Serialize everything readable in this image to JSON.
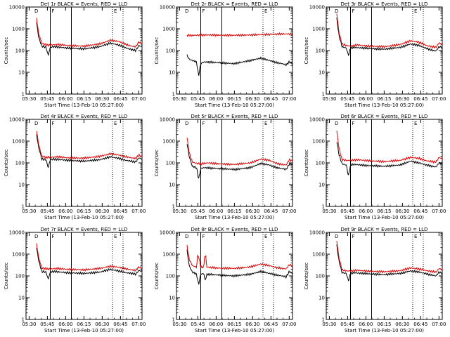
{
  "page": {
    "background": "#ffffff"
  },
  "colors": {
    "events": "#000000",
    "lld": "#e00000",
    "axes": "#000000"
  },
  "chart_data": [
    {
      "type": "line",
      "title": "Det 1r BLACK = Events, RED = LLD",
      "xlabel": "Start Time (13-Feb-10 05:27:00)",
      "ylabel": "Counts/sec",
      "yscale": "log",
      "ylim": [
        1,
        10000
      ],
      "ytick_labels": [
        "1",
        "10",
        "100",
        "1000",
        "10000"
      ],
      "xlim": [
        -0.1,
        1.0
      ],
      "xtick_labels": [
        "05:30",
        "05:45",
        "06:00",
        "06:15",
        "06:30",
        "06:45",
        "07:00"
      ],
      "markers": [
        "D",
        "F",
        "E"
      ],
      "solid_lines_x": [
        0.13,
        0.33
      ],
      "dotted_lines_x": [
        0.72,
        0.82
      ],
      "series": [
        {
          "name": "Events",
          "color": "black",
          "x": [
            0.0,
            0.02,
            0.05,
            0.09,
            0.11,
            0.13,
            0.16,
            0.3,
            0.45,
            0.6,
            0.7,
            0.78,
            0.85,
            0.9,
            0.94,
            0.97,
            1.0
          ],
          "y": [
            2000,
            400,
            160,
            140,
            60,
            140,
            150,
            130,
            120,
            150,
            220,
            180,
            130,
            110,
            100,
            170,
            150
          ]
        },
        {
          "name": "LLD",
          "color": "red",
          "x": [
            0.0,
            0.02,
            0.05,
            0.09,
            0.13,
            0.2,
            0.3,
            0.45,
            0.6,
            0.7,
            0.78,
            0.85,
            0.9,
            0.94,
            0.97,
            1.0
          ],
          "y": [
            3000,
            600,
            220,
            180,
            180,
            190,
            170,
            160,
            200,
            300,
            260,
            190,
            160,
            150,
            250,
            200
          ]
        }
      ]
    },
    {
      "type": "line",
      "title": "Det 2r BLACK = Events, RED = LLD",
      "xlabel": "Start Time (13-Feb-10 05:27:00)",
      "ylabel": "Counts/sec",
      "yscale": "log",
      "ylim": [
        1,
        10000
      ],
      "ytick_labels": [
        "1",
        "10",
        "100",
        "1000",
        "10000"
      ],
      "xlim": [
        -0.1,
        1.0
      ],
      "xtick_labels": [
        "05:30",
        "05:45",
        "06:00",
        "06:15",
        "06:30",
        "06:45",
        "07:00"
      ],
      "markers": [
        "D",
        "F",
        "E"
      ],
      "solid_lines_x": [
        0.13,
        0.33
      ],
      "dotted_lines_x": [
        0.72,
        0.82
      ],
      "series": [
        {
          "name": "Events",
          "color": "black",
          "x": [
            0.0,
            0.02,
            0.05,
            0.09,
            0.11,
            0.13,
            0.16,
            0.3,
            0.45,
            0.6,
            0.7,
            0.78,
            0.85,
            0.9,
            0.94,
            0.97,
            1.0
          ],
          "y": [
            60,
            40,
            35,
            30,
            7,
            25,
            30,
            28,
            25,
            35,
            45,
            35,
            28,
            25,
            22,
            30,
            25
          ]
        },
        {
          "name": "LLD",
          "color": "red",
          "x": [
            0.0,
            0.05,
            0.2,
            0.4,
            0.6,
            0.8,
            0.95,
            1.0
          ],
          "y": [
            500,
            500,
            520,
            500,
            520,
            560,
            580,
            560
          ]
        }
      ]
    },
    {
      "type": "line",
      "title": "Det 3r BLACK = Events, RED = LLD",
      "xlabel": "Start Time (13-Feb-10 05:27:00)",
      "ylabel": "Counts/sec",
      "yscale": "log",
      "ylim": [
        1,
        10000
      ],
      "ytick_labels": [
        "1",
        "10",
        "100",
        "1000",
        "10000"
      ],
      "xlim": [
        -0.1,
        1.0
      ],
      "xtick_labels": [
        "05:30",
        "05:45",
        "06:00",
        "06:15",
        "06:30",
        "06:45",
        "07:00"
      ],
      "markers": [
        "D",
        "F",
        "E"
      ],
      "solid_lines_x": [
        0.13,
        0.33
      ],
      "dotted_lines_x": [
        0.72,
        0.82
      ],
      "series": [
        {
          "name": "Events",
          "color": "black",
          "x": [
            0.0,
            0.02,
            0.05,
            0.09,
            0.11,
            0.13,
            0.16,
            0.3,
            0.45,
            0.6,
            0.7,
            0.78,
            0.85,
            0.9,
            0.94,
            0.97,
            1.0
          ],
          "y": [
            3000,
            500,
            150,
            130,
            60,
            130,
            140,
            125,
            115,
            140,
            200,
            170,
            125,
            105,
            95,
            150,
            140
          ]
        },
        {
          "name": "LLD",
          "color": "red",
          "x": [
            0.0,
            0.02,
            0.05,
            0.09,
            0.13,
            0.2,
            0.3,
            0.45,
            0.6,
            0.7,
            0.78,
            0.85,
            0.9,
            0.94,
            0.97,
            1.0
          ],
          "y": [
            5000,
            700,
            200,
            170,
            160,
            180,
            160,
            150,
            190,
            280,
            240,
            170,
            150,
            140,
            230,
            180
          ]
        }
      ]
    },
    {
      "type": "line",
      "title": "Det 4r BLACK = Events, RED = LLD",
      "xlabel": "Start Time (13-Feb-10 05:27:00)",
      "ylabel": "Counts/sec",
      "yscale": "log",
      "ylim": [
        1,
        10000
      ],
      "ytick_labels": [
        "1",
        "10",
        "100",
        "1000",
        "10000"
      ],
      "xlim": [
        -0.1,
        1.0
      ],
      "xtick_labels": [
        "05:30",
        "05:45",
        "06:00",
        "06:15",
        "06:30",
        "06:45",
        "07:00"
      ],
      "markers": [
        "D",
        "F",
        "E"
      ],
      "solid_lines_x": [
        0.13,
        0.33
      ],
      "dotted_lines_x": [
        0.72,
        0.82
      ],
      "series": [
        {
          "name": "Events",
          "color": "black",
          "x": [
            0.0,
            0.02,
            0.05,
            0.09,
            0.11,
            0.13,
            0.16,
            0.3,
            0.45,
            0.6,
            0.7,
            0.78,
            0.85,
            0.9,
            0.94,
            0.97,
            1.0
          ],
          "y": [
            2000,
            500,
            150,
            140,
            60,
            140,
            150,
            130,
            120,
            140,
            190,
            160,
            130,
            120,
            110,
            170,
            150
          ]
        },
        {
          "name": "LLD",
          "color": "red",
          "x": [
            0.0,
            0.02,
            0.05,
            0.09,
            0.13,
            0.2,
            0.3,
            0.45,
            0.6,
            0.7,
            0.78,
            0.85,
            0.9,
            0.94,
            0.97,
            1.0
          ],
          "y": [
            3000,
            700,
            200,
            180,
            180,
            190,
            170,
            165,
            200,
            260,
            230,
            190,
            170,
            160,
            230,
            190
          ]
        }
      ]
    },
    {
      "type": "line",
      "title": "Det 5r BLACK = Events, RED = LLD",
      "xlabel": "Start Time (13-Feb-10 05:27:00)",
      "ylabel": "Counts/sec",
      "yscale": "log",
      "ylim": [
        1,
        10000
      ],
      "ytick_labels": [
        "1",
        "10",
        "100",
        "1000",
        "10000"
      ],
      "xlim": [
        -0.1,
        1.0
      ],
      "xtick_labels": [
        "05:30",
        "05:45",
        "06:00",
        "06:15",
        "06:30",
        "06:45",
        "07:00"
      ],
      "markers": [
        "D",
        "F",
        "E"
      ],
      "solid_lines_x": [
        0.13,
        0.33
      ],
      "dotted_lines_x": [
        0.72,
        0.82
      ],
      "series": [
        {
          "name": "Events",
          "color": "black",
          "x": [
            0.0,
            0.02,
            0.05,
            0.09,
            0.11,
            0.13,
            0.16,
            0.3,
            0.45,
            0.6,
            0.7,
            0.78,
            0.85,
            0.9,
            0.94,
            0.97,
            1.0
          ],
          "y": [
            800,
            200,
            70,
            60,
            18,
            55,
            60,
            55,
            50,
            60,
            95,
            80,
            60,
            55,
            50,
            90,
            80
          ]
        },
        {
          "name": "LLD",
          "color": "red",
          "x": [
            0.0,
            0.02,
            0.05,
            0.09,
            0.13,
            0.2,
            0.3,
            0.45,
            0.6,
            0.7,
            0.78,
            0.85,
            0.9,
            0.94,
            0.97,
            1.0
          ],
          "y": [
            1500,
            300,
            110,
            95,
            90,
            100,
            90,
            85,
            100,
            150,
            130,
            95,
            85,
            80,
            140,
            120
          ]
        }
      ]
    },
    {
      "type": "line",
      "title": "Det 6r BLACK = Events, RED = LLD",
      "xlabel": "Start Time (13-Feb-10 05:27:00)",
      "ylabel": "Counts/sec",
      "yscale": "log",
      "ylim": [
        1,
        10000
      ],
      "ytick_labels": [
        "1",
        "10",
        "100",
        "1000",
        "10000"
      ],
      "xlim": [
        -0.1,
        1.0
      ],
      "xtick_labels": [
        "05:30",
        "05:45",
        "06:00",
        "06:15",
        "06:30",
        "06:45",
        "07:00"
      ],
      "markers": [
        "D",
        "F",
        "E"
      ],
      "solid_lines_x": [
        0.13,
        0.33
      ],
      "dotted_lines_x": [
        0.72,
        0.82
      ],
      "series": [
        {
          "name": "Events",
          "color": "black",
          "x": [
            0.0,
            0.02,
            0.05,
            0.09,
            0.11,
            0.13,
            0.16,
            0.3,
            0.45,
            0.6,
            0.7,
            0.78,
            0.85,
            0.9,
            0.94,
            0.97,
            1.0
          ],
          "y": [
            1000,
            250,
            90,
            80,
            25,
            80,
            85,
            75,
            70,
            80,
            120,
            100,
            80,
            70,
            65,
            100,
            90
          ]
        },
        {
          "name": "LLD",
          "color": "red",
          "x": [
            0.0,
            0.02,
            0.05,
            0.09,
            0.13,
            0.2,
            0.3,
            0.45,
            0.6,
            0.7,
            0.78,
            0.85,
            0.9,
            0.94,
            0.97,
            1.0
          ],
          "y": [
            3000,
            500,
            140,
            130,
            130,
            140,
            125,
            115,
            130,
            180,
            160,
            125,
            115,
            110,
            180,
            150
          ]
        }
      ]
    },
    {
      "type": "line",
      "title": "Det 7r BLACK = Events, RED = LLD",
      "xlabel": "Start Time (13-Feb-10 05:27:00)",
      "ylabel": "Counts/sec",
      "yscale": "log",
      "ylim": [
        1,
        10000
      ],
      "ytick_labels": [
        "1",
        "10",
        "100",
        "1000",
        "10000"
      ],
      "xlim": [
        -0.1,
        1.0
      ],
      "xtick_labels": [
        "05:30",
        "05:45",
        "06:00",
        "06:15",
        "06:30",
        "06:45",
        "07:00"
      ],
      "markers": [
        "D",
        "F",
        "E"
      ],
      "solid_lines_x": [
        0.13,
        0.33
      ],
      "dotted_lines_x": [
        0.72,
        0.82
      ],
      "series": [
        {
          "name": "Events",
          "color": "black",
          "x": [
            0.0,
            0.02,
            0.05,
            0.09,
            0.11,
            0.13,
            0.16,
            0.3,
            0.45,
            0.6,
            0.7,
            0.78,
            0.85,
            0.9,
            0.94,
            0.97,
            1.0
          ],
          "y": [
            2000,
            500,
            160,
            150,
            70,
            150,
            160,
            140,
            130,
            150,
            200,
            170,
            140,
            130,
            120,
            180,
            160
          ]
        },
        {
          "name": "LLD",
          "color": "red",
          "x": [
            0.0,
            0.02,
            0.05,
            0.09,
            0.13,
            0.2,
            0.3,
            0.45,
            0.6,
            0.7,
            0.78,
            0.85,
            0.9,
            0.94,
            0.97,
            1.0
          ],
          "y": [
            3000,
            700,
            230,
            210,
            210,
            220,
            200,
            190,
            220,
            280,
            250,
            210,
            190,
            180,
            260,
            220
          ]
        }
      ]
    },
    {
      "type": "line",
      "title": "Det 8r BLACK = Events, RED = LLD",
      "xlabel": "Start Time (13-Feb-10 05:27:00)",
      "ylabel": "Counts/sec",
      "yscale": "log",
      "ylim": [
        1,
        10000
      ],
      "ytick_labels": [
        "1",
        "10",
        "100",
        "1000",
        "10000"
      ],
      "xlim": [
        -0.1,
        1.0
      ],
      "xtick_labels": [
        "05:30",
        "05:45",
        "06:00",
        "06:15",
        "06:30",
        "06:45",
        "07:00"
      ],
      "markers": [
        "D",
        "F",
        "E"
      ],
      "solid_lines_x": [
        0.13,
        0.33
      ],
      "dotted_lines_x": [
        0.72,
        0.82
      ],
      "series": [
        {
          "name": "Events",
          "color": "black",
          "x": [
            0.0,
            0.02,
            0.05,
            0.09,
            0.11,
            0.13,
            0.16,
            0.17,
            0.19,
            0.3,
            0.45,
            0.6,
            0.7,
            0.78,
            0.85,
            0.9,
            0.94,
            0.97,
            1.0
          ],
          "y": [
            1500,
            300,
            150,
            120,
            40,
            120,
            130,
            60,
            120,
            110,
            100,
            120,
            160,
            130,
            110,
            100,
            90,
            160,
            130
          ]
        },
        {
          "name": "LLD",
          "color": "red",
          "x": [
            0.0,
            0.02,
            0.05,
            0.09,
            0.1,
            0.11,
            0.13,
            0.16,
            0.165,
            0.18,
            0.185,
            0.2,
            0.3,
            0.45,
            0.6,
            0.7,
            0.78,
            0.85,
            0.9,
            0.94,
            0.97,
            1.0
          ],
          "y": [
            2500,
            600,
            300,
            250,
            800,
            800,
            250,
            260,
            800,
            800,
            260,
            250,
            230,
            220,
            260,
            350,
            300,
            240,
            220,
            210,
            330,
            280
          ]
        }
      ]
    },
    {
      "type": "line",
      "title": "Det 9r BLACK = Events, RED = LLD",
      "xlabel": "Start Time (13-Feb-10 05:27:00)",
      "ylabel": "Counts/sec",
      "yscale": "log",
      "ylim": [
        1,
        10000
      ],
      "ytick_labels": [
        "1",
        "10",
        "100",
        "1000",
        "10000"
      ],
      "xlim": [
        -0.1,
        1.0
      ],
      "xtick_labels": [
        "05:30",
        "05:45",
        "06:00",
        "06:15",
        "06:30",
        "06:45",
        "07:00"
      ],
      "markers": [
        "D",
        "F",
        "E"
      ],
      "solid_lines_x": [
        0.13,
        0.33
      ],
      "dotted_lines_x": [
        0.72,
        0.82
      ],
      "series": [
        {
          "name": "Events",
          "color": "black",
          "x": [
            0.0,
            0.02,
            0.05,
            0.09,
            0.11,
            0.13,
            0.16,
            0.3,
            0.45,
            0.6,
            0.7,
            0.78,
            0.85,
            0.9,
            0.94,
            0.97,
            1.0
          ],
          "y": [
            2500,
            500,
            140,
            130,
            60,
            130,
            140,
            125,
            115,
            130,
            170,
            150,
            125,
            110,
            100,
            150,
            130
          ]
        },
        {
          "name": "LLD",
          "color": "red",
          "x": [
            0.0,
            0.02,
            0.05,
            0.09,
            0.13,
            0.2,
            0.3,
            0.45,
            0.6,
            0.7,
            0.78,
            0.85,
            0.9,
            0.94,
            0.97,
            1.0
          ],
          "y": [
            4000,
            700,
            190,
            170,
            170,
            180,
            165,
            155,
            175,
            230,
            210,
            175,
            160,
            150,
            220,
            190
          ]
        }
      ]
    }
  ]
}
